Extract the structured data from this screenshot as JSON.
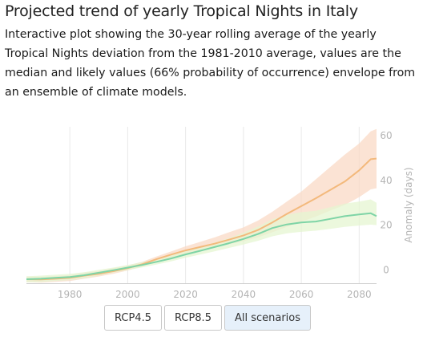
{
  "header": {
    "title": "Projected trend of yearly Tropical Nights in Italy",
    "subtitle": "Interactive plot showing the 30-year rolling average of the yearly Tropical Nights deviation from the 1981-2010 average, values are the median and likely values (66% probability of occurrence) envelope from an ensemble of climate models."
  },
  "buttons": {
    "rcp45": "RCP4.5",
    "rcp85": "RCP8.5",
    "all": "All scenarios",
    "selected": "All scenarios"
  },
  "chart_data": {
    "type": "line",
    "title": "",
    "xlabel": "",
    "ylabel": "Anomaly (days)",
    "xlim": [
      1965,
      2086
    ],
    "ylim": [
      -6,
      64
    ],
    "xticks": [
      1980,
      2000,
      2020,
      2040,
      2060,
      2080
    ],
    "yticks": [
      0,
      20,
      40,
      60
    ],
    "grid": "vertical",
    "series": [
      {
        "color": "#f3b97c",
        "band_color": "#fad9c6",
        "x": [
          1965,
          1970,
          1975,
          1980,
          1985,
          1990,
          1995,
          2000,
          2005,
          2010,
          2015,
          2020,
          2025,
          2030,
          2035,
          2040,
          2045,
          2050,
          2055,
          2060,
          2065,
          2070,
          2075,
          2080,
          2084,
          2086
        ],
        "median": [
          -4.2,
          -4.3,
          -4.0,
          -3.6,
          -2.6,
          -1.8,
          -0.6,
          0.8,
          2.5,
          4.8,
          6.8,
          8.7,
          10.2,
          11.7,
          13.5,
          15.4,
          17.8,
          21.2,
          25.0,
          28.5,
          32.0,
          35.7,
          39.5,
          44.5,
          49.5,
          49.8
        ],
        "lower": [
          -5.5,
          -5.7,
          -5.4,
          -5.0,
          -4.0,
          -3.0,
          -1.8,
          -0.3,
          1.5,
          3.6,
          5.5,
          7.2,
          8.6,
          9.9,
          11.4,
          12.8,
          14.5,
          16.8,
          19.2,
          21.5,
          23.8,
          26.5,
          29.0,
          32.5,
          36.0,
          36.5
        ],
        "upper": [
          -3.0,
          -3.1,
          -2.8,
          -2.3,
          -1.2,
          -0.5,
          0.7,
          2.0,
          3.6,
          6.0,
          8.2,
          10.5,
          12.5,
          14.5,
          16.8,
          19.0,
          22.0,
          26.0,
          30.5,
          35.0,
          40.5,
          46.0,
          51.5,
          56.5,
          62.0,
          63.0
        ]
      },
      {
        "color": "#7ed4a6",
        "band_color": "#e6f5d2",
        "x": [
          1965,
          1970,
          1975,
          1980,
          1985,
          1990,
          1995,
          2000,
          2005,
          2010,
          2015,
          2020,
          2025,
          2030,
          2035,
          2040,
          2045,
          2050,
          2055,
          2060,
          2065,
          2070,
          2075,
          2080,
          2084,
          2086
        ],
        "median": [
          -4.2,
          -4.0,
          -3.6,
          -3.2,
          -2.4,
          -1.3,
          -0.2,
          1.0,
          2.2,
          3.6,
          5.1,
          6.9,
          8.5,
          10.2,
          11.9,
          13.8,
          16.0,
          18.7,
          20.3,
          21.2,
          21.6,
          22.8,
          24.0,
          24.8,
          25.3,
          24.0
        ],
        "lower": [
          -5.6,
          -5.5,
          -5.0,
          -4.6,
          -3.7,
          -2.6,
          -1.3,
          -0.1,
          1.1,
          2.4,
          3.8,
          5.4,
          6.8,
          8.3,
          9.8,
          11.3,
          13.0,
          15.0,
          16.3,
          17.0,
          17.5,
          18.3,
          19.2,
          19.8,
          20.2,
          20.0
        ],
        "upper": [
          -2.9,
          -2.6,
          -2.2,
          -1.8,
          -1.1,
          0.0,
          1.0,
          2.2,
          3.4,
          4.8,
          6.5,
          8.4,
          10.2,
          12.2,
          14.2,
          16.6,
          19.4,
          22.6,
          24.6,
          25.8,
          26.4,
          28.0,
          29.6,
          30.5,
          31.5,
          30.0
        ]
      }
    ]
  }
}
